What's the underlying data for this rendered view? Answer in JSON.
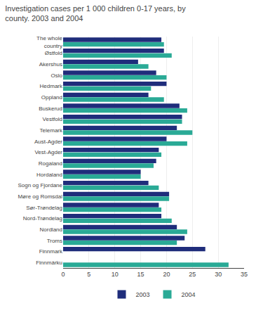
{
  "chart_data": {
    "type": "bar",
    "orientation": "horizontal",
    "title": "Investigation cases per 1 000 children 0-17 years, by\ncounty. 2003 and 2004",
    "categories": [
      "The whole\ncountry",
      "Østfold",
      "Akershus",
      "Oslo",
      "Hedmark",
      "Oppland",
      "Buskerud",
      "Vestfold",
      "Telemark",
      "Aust-Agder",
      "Vest-Agder",
      "Rogaland",
      "Hordaland",
      "Sogn og Fjordane",
      "Møre og Romsdal",
      "Sør-Trøndelag",
      "Nord-Trøndelag",
      "Nordland",
      "Troms",
      "Finnmark",
      "Finnmárku"
    ],
    "series": [
      {
        "name": "2003",
        "color": "#1f2d7b",
        "values": [
          19.0,
          19.5,
          14.5,
          18.0,
          20.0,
          16.5,
          22.5,
          23.0,
          22.0,
          20.0,
          18.5,
          18.0,
          15.0,
          16.5,
          20.5,
          18.5,
          19.0,
          22.0,
          23.5,
          27.5,
          null
        ]
      },
      {
        "name": "2004",
        "color": "#2aaa96",
        "values": [
          19.5,
          21.0,
          16.5,
          20.0,
          17.0,
          19.5,
          24.0,
          23.0,
          25.0,
          24.0,
          19.0,
          17.5,
          15.0,
          18.5,
          20.5,
          19.0,
          21.0,
          24.0,
          22.0,
          null,
          32.0
        ]
      }
    ],
    "xlim": [
      0,
      35
    ],
    "xticks": [
      0,
      5,
      10,
      15,
      20,
      25,
      30,
      35
    ],
    "grid": true,
    "legend": "bottom"
  }
}
